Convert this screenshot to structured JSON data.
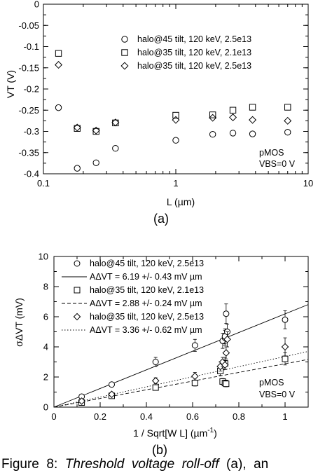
{
  "chart_data": [
    {
      "type": "scatter",
      "sublabel": "(a)",
      "xscale": "log",
      "xlim": [
        0.1,
        10
      ],
      "ylim": [
        -0.4,
        0
      ],
      "xticks": [
        "0.1",
        "1",
        "10"
      ],
      "yticks": [
        "0",
        "-0.05",
        "-0.1",
        "-0.15",
        "-0.2",
        "-0.25",
        "-0.3",
        "-0.35",
        "-0.4"
      ],
      "xlabel": "L   (µm)",
      "ylabel": "VT   (V)",
      "annotation": [
        "pMOS",
        "VBS=0 V"
      ],
      "legend_position": "top-right",
      "series": [
        {
          "name": "halo@45 tilt, 120 keV, 2.5e13",
          "marker": "circle",
          "x": [
            0.13,
            0.18,
            0.25,
            0.35,
            1.0,
            1.9,
            2.7,
            3.8,
            7.0
          ],
          "y": [
            -0.244,
            -0.387,
            -0.374,
            -0.34,
            -0.321,
            -0.307,
            -0.304,
            -0.306,
            -0.302
          ]
        },
        {
          "name": "halo@35 tilt, 120 keV, 2.1e13",
          "marker": "square",
          "x": [
            0.13,
            0.18,
            0.25,
            0.35,
            1.0,
            1.9,
            2.7,
            3.8,
            7.0
          ],
          "y": [
            -0.116,
            -0.293,
            -0.3,
            -0.28,
            -0.262,
            -0.261,
            -0.25,
            -0.243,
            -0.243
          ]
        },
        {
          "name": "halo@35 tilt, 120 keV, 2.5e13",
          "marker": "diamond",
          "x": [
            0.13,
            0.18,
            0.25,
            0.35,
            1.0,
            1.9,
            2.7,
            3.8,
            7.0
          ],
          "y": [
            -0.143,
            -0.291,
            -0.298,
            -0.279,
            -0.273,
            -0.268,
            -0.267,
            -0.273,
            -0.275
          ]
        }
      ]
    },
    {
      "type": "scatter",
      "sublabel": "(b)",
      "xlim": [
        0,
        1.1
      ],
      "ylim": [
        0,
        10
      ],
      "xticks": [
        "0",
        "0.2",
        "0.4",
        "0.6",
        "0.8",
        "1"
      ],
      "yticks": [
        "0",
        "2",
        "4",
        "6",
        "8",
        "10"
      ],
      "xlabel": "1 / Sqrt[W L]   (µm",
      "xlabel_sup": "-1",
      "xlabel_end": ")",
      "ylabel": "σΔVT   (mV)",
      "annotation": [
        "pMOS",
        "VBS=0 V"
      ],
      "legend_position": "top-left",
      "series": [
        {
          "name": "halo@45 tilt, 120 keV, 2.5e13",
          "marker": "circle",
          "x": [
            0.12,
            0.25,
            0.44,
            0.61,
            0.73,
            0.74,
            0.74,
            0.745,
            0.75,
            1.0
          ],
          "y": [
            0.7,
            1.5,
            3.0,
            4.1,
            4.4,
            4.6,
            4.7,
            6.2,
            5.0,
            5.8
          ],
          "err": [
            0.1,
            0.15,
            0.3,
            0.4,
            0.5,
            0.5,
            0.5,
            0.65,
            0.5,
            0.6
          ]
        },
        {
          "name": "halo@35 tilt, 120 keV, 2.1e13",
          "marker": "square",
          "x": [
            0.12,
            0.25,
            0.44,
            0.61,
            0.72,
            0.73,
            0.74,
            0.74,
            0.745,
            1.0
          ],
          "y": [
            0.3,
            0.75,
            1.3,
            1.6,
            2.4,
            1.7,
            1.6,
            2.9,
            1.55,
            3.2
          ],
          "err": [
            0.05,
            0.1,
            0.15,
            0.2,
            0.3,
            0.2,
            0.2,
            0.4,
            0.2,
            0.4
          ]
        },
        {
          "name": "halo@35 tilt, 120 keV, 2.5e13",
          "marker": "diamond",
          "x": [
            0.12,
            0.25,
            0.44,
            0.61,
            0.72,
            0.73,
            0.74,
            0.745,
            0.75,
            1.0
          ],
          "y": [
            0.4,
            0.85,
            1.75,
            2.05,
            2.7,
            3.0,
            2.8,
            3.6,
            4.5,
            4.0
          ],
          "err": [
            0.05,
            0.1,
            0.2,
            0.25,
            0.3,
            0.3,
            0.3,
            0.4,
            0.5,
            0.6
          ]
        }
      ],
      "fits": [
        {
          "name": "AΔVT = 6.19 +/- 0.43 mV µm",
          "slope": 6.19,
          "dash": "solid"
        },
        {
          "name": "AΔVT = 2.88 +/- 0.24 mV µm",
          "slope": 2.88,
          "dash": "dashed"
        },
        {
          "name": "AΔVT = 3.36 +/- 0.62 mV µm",
          "slope": 3.36,
          "dash": "dotted"
        }
      ]
    }
  ],
  "caption": {
    "prefix": "Figure  8:  ",
    "italic": "Threshold  voltage  roll-off",
    "suffix": "  (a),  an"
  }
}
